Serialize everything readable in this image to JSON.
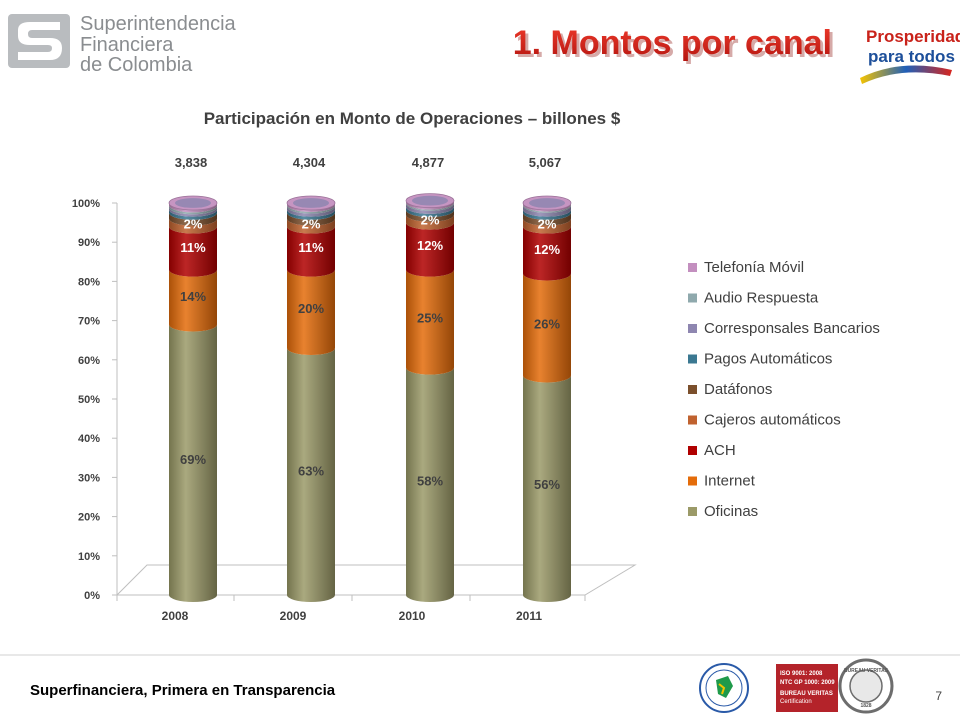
{
  "header": {
    "org_line1": "Superintendencia",
    "org_line2": "Financiera",
    "org_line3": "de Colombia",
    "slide_title": "1. Montos por canal",
    "badge_line1": "Prosperidad",
    "badge_line2": "para todos"
  },
  "footer": {
    "tagline": "Superfinanciera, Primera en Transparencia",
    "page_number": "7",
    "cert_line1": "ISO 9001: 2008",
    "cert_line2": "NTC GP 1000: 2009",
    "cert_line3": "BUREAU VERITAS",
    "cert_line4": "Certification",
    "seal_text": "BUREAU VERITAS",
    "seal_year": "1828"
  },
  "colors": {
    "title_red": "#d7261e",
    "gray_logo": "#8a8d90",
    "axis_line": "#bfbfbf"
  },
  "chart_data": {
    "type": "bar",
    "stacked": true,
    "normalized": true,
    "title": "Participación en Monto de Operaciones – billones $",
    "categories": [
      "2008",
      "2009",
      "2010",
      "2011"
    ],
    "totals": [
      "3,838",
      "4,304",
      "4,877",
      "5,067"
    ],
    "ylim": [
      0,
      100
    ],
    "yticks": [
      "0%",
      "10%",
      "20%",
      "30%",
      "40%",
      "50%",
      "60%",
      "70%",
      "80%",
      "90%",
      "100%"
    ],
    "legend_position": "right",
    "series": [
      {
        "name": "Oficinas",
        "color": "#9b9a68",
        "values": [
          69,
          63,
          58,
          56
        ],
        "labels": [
          "69%",
          "63%",
          "58%",
          "56%"
        ]
      },
      {
        "name": "Internet",
        "color": "#e46c0a",
        "values": [
          14,
          20,
          25,
          26
        ],
        "labels": [
          "14%",
          "20%",
          "25%",
          "26%"
        ]
      },
      {
        "name": "ACH",
        "color": "#b00000",
        "values": [
          11,
          11,
          12,
          12
        ],
        "labels": [
          "11%",
          "11%",
          "12%",
          "12%"
        ]
      },
      {
        "name": "Cajeros automáticos",
        "color": "#c0622f",
        "values": [
          2,
          2,
          2,
          2
        ],
        "labels": [
          "2%",
          "2%",
          "2%",
          "2%"
        ]
      },
      {
        "name": "Datáfonos",
        "color": "#7b4f2c",
        "values": [
          1.5,
          1.5,
          1.2,
          1.5
        ],
        "labels": [
          "",
          "",
          "",
          ""
        ]
      },
      {
        "name": "Pagos Automáticos",
        "color": "#3b7891",
        "values": [
          0.8,
          0.8,
          0.8,
          0.8
        ],
        "labels": [
          "",
          "",
          "",
          ""
        ]
      },
      {
        "name": "Corresponsales Bancarios",
        "color": "#8e86b0",
        "values": [
          0.6,
          0.8,
          0.8,
          1.0
        ],
        "labels": [
          "",
          "",
          "",
          ""
        ]
      },
      {
        "name": "Audio Respuesta",
        "color": "#8fa9ad",
        "values": [
          0.5,
          0.4,
          0.3,
          0.3
        ],
        "labels": [
          "",
          "",
          "",
          ""
        ]
      },
      {
        "name": "Telefonía Móvil",
        "color": "#c38fbf",
        "values": [
          0.6,
          0.5,
          0.5,
          0.4
        ],
        "labels": [
          "",
          "",
          "",
          ""
        ]
      }
    ]
  }
}
